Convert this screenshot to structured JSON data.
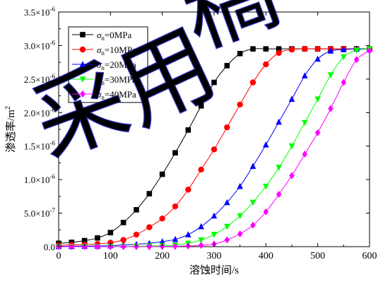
{
  "chart_data": {
    "type": "line",
    "title": "",
    "xlabel": "溶蚀时间/s",
    "ylabel": "渗透率/m",
    "ylabel_sup": "2",
    "xlim": [
      0,
      600
    ],
    "ylim": [
      0,
      3.5e-06
    ],
    "x_ticks": [
      0,
      100,
      200,
      300,
      400,
      500,
      600
    ],
    "y_ticks": [
      {
        "value": 0,
        "mant": "0.0",
        "exp": ""
      },
      {
        "value": 5e-07,
        "mant": "5.0×10",
        "exp": "-7"
      },
      {
        "value": 1e-06,
        "mant": "1.0×10",
        "exp": "-6"
      },
      {
        "value": 1.5e-06,
        "mant": "1.5×10",
        "exp": "-6"
      },
      {
        "value": 2e-06,
        "mant": "2.0×10",
        "exp": "-6"
      },
      {
        "value": 2.5e-06,
        "mant": "2.5×10",
        "exp": "-6"
      },
      {
        "value": 3e-06,
        "mant": "3.0×10",
        "exp": "-6"
      },
      {
        "value": 3.5e-06,
        "mant": "3.5×10",
        "exp": "-6"
      }
    ],
    "grid": false,
    "legend_position": "top-left",
    "x": [
      0,
      25,
      50,
      75,
      100,
      125,
      150,
      175,
      200,
      225,
      250,
      275,
      300,
      325,
      350,
      375,
      400,
      425,
      450,
      475,
      500,
      525,
      550,
      575,
      600
    ],
    "series": [
      {
        "name": "σn=0MPa",
        "legend": {
          "symbol": "σ",
          "sub": "n",
          "value": "=0MPa"
        },
        "color": "#000000",
        "marker": "square",
        "values": [
          5e-08,
          6.5e-08,
          9e-08,
          1.3e-07,
          2.1e-07,
          3.6e-07,
          5.5e-07,
          7.9e-07,
          1.08e-06,
          1.4e-06,
          1.74e-06,
          2.1e-06,
          2.45e-06,
          2.7e-06,
          2.88e-06,
          2.95e-06,
          2.95e-06,
          2.95e-06,
          2.95e-06,
          2.95e-06,
          2.95e-06,
          2.95e-06,
          2.95e-06,
          2.95e-06,
          2.95e-06
        ]
      },
      {
        "name": "σn=10MPa",
        "legend": {
          "symbol": "σ",
          "sub": "n",
          "value": "=10MPa"
        },
        "color": "#ff0000",
        "marker": "circle",
        "values": [
          2e-08,
          2.5e-08,
          3e-08,
          4e-08,
          6e-08,
          1e-07,
          1.8e-07,
          2.9e-07,
          4.2e-07,
          6e-07,
          8.5e-07,
          1.15e-06,
          1.45e-06,
          1.78e-06,
          2.12e-06,
          2.45e-06,
          2.72e-06,
          2.89e-06,
          2.94e-06,
          2.95e-06,
          2.95e-06,
          2.95e-06,
          2.95e-06,
          2.95e-06,
          2.95e-06
        ]
      },
      {
        "name": "σn=20MPa",
        "legend": {
          "symbol": "σ",
          "sub": "n",
          "value": "=20MPa"
        },
        "color": "#0000ff",
        "marker": "triangle-up",
        "values": [
          5e-09,
          6e-09,
          8e-09,
          1e-08,
          1.5e-08,
          2.5e-08,
          3.5e-08,
          5e-08,
          7.5e-08,
          1.1e-07,
          1.8e-07,
          3e-07,
          4.6e-07,
          6.6e-07,
          9e-07,
          1.2e-06,
          1.52e-06,
          1.86e-06,
          2.2e-06,
          2.55e-06,
          2.8e-06,
          2.92e-06,
          2.94e-06,
          2.95e-06,
          2.95e-06
        ]
      },
      {
        "name": "σn=30MPa",
        "legend": {
          "symbol": "σ",
          "sub": "n",
          "value": "=30MPa"
        },
        "color": "#00ff00",
        "marker": "triangle-down",
        "values": [
          0,
          0,
          0,
          1e-09,
          2e-09,
          3e-09,
          5e-09,
          1e-08,
          1.5e-08,
          2.5e-08,
          5e-08,
          1e-07,
          1.8e-07,
          3e-07,
          4.6e-07,
          6.6e-07,
          9e-07,
          1.18e-06,
          1.5e-06,
          1.85e-06,
          2.2e-06,
          2.56e-06,
          2.83e-06,
          2.93e-06,
          2.95e-06
        ]
      },
      {
        "name": "σn=40MPa",
        "legend": {
          "symbol": "σ",
          "sub": "n",
          "value": "=40MPa"
        },
        "color": "#ff00ff",
        "marker": "diamond",
        "values": [
          0,
          0,
          0,
          0,
          0,
          0,
          0,
          0,
          2e-09,
          5e-09,
          1e-08,
          2e-08,
          4e-08,
          1e-07,
          1.9e-07,
          3.2e-07,
          5.2e-07,
          7.8e-07,
          1.06e-06,
          1.38e-06,
          1.7e-06,
          2.06e-06,
          2.45e-06,
          2.79e-06,
          2.92e-06
        ]
      }
    ]
  },
  "watermark": {
    "chars": [
      "采",
      "用",
      "稿"
    ],
    "color": "#2a2acc"
  }
}
